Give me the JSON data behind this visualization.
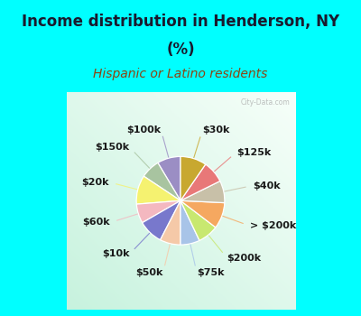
{
  "title_line1": "Income distribution in Henderson, NY",
  "title_line2": "(%)",
  "subtitle": "Hispanic or Latino residents",
  "background_color": "#00FFFF",
  "watermark": "City-Data.com",
  "slices": [
    {
      "label": "$100k",
      "value": 8.5,
      "color": "#9b8ec4"
    },
    {
      "label": "$150k",
      "value": 7.0,
      "color": "#a8c4a0"
    },
    {
      "label": "$20k",
      "value": 10.5,
      "color": "#f5f270"
    },
    {
      "label": "$60k",
      "value": 7.0,
      "color": "#f4b8c0"
    },
    {
      "label": "$10k",
      "value": 9.0,
      "color": "#7878cc"
    },
    {
      "label": "$50k",
      "value": 7.5,
      "color": "#f5c9a8"
    },
    {
      "label": "$75k",
      "value": 7.0,
      "color": "#a8c4e8"
    },
    {
      "label": "$200k",
      "value": 7.5,
      "color": "#c8e870"
    },
    {
      "label": "> $200k",
      "value": 9.5,
      "color": "#f5a860"
    },
    {
      "label": "$40k",
      "value": 8.0,
      "color": "#c8c0a8"
    },
    {
      "label": "$125k",
      "value": 8.0,
      "color": "#e87878"
    },
    {
      "label": "$30k",
      "value": 9.5,
      "color": "#c8a830"
    }
  ],
  "title_fontsize": 12,
  "subtitle_fontsize": 10,
  "label_fontsize": 8,
  "title_color": "#1a1a2e",
  "subtitle_color": "#8B4513",
  "label_color": "#1a1a1a"
}
